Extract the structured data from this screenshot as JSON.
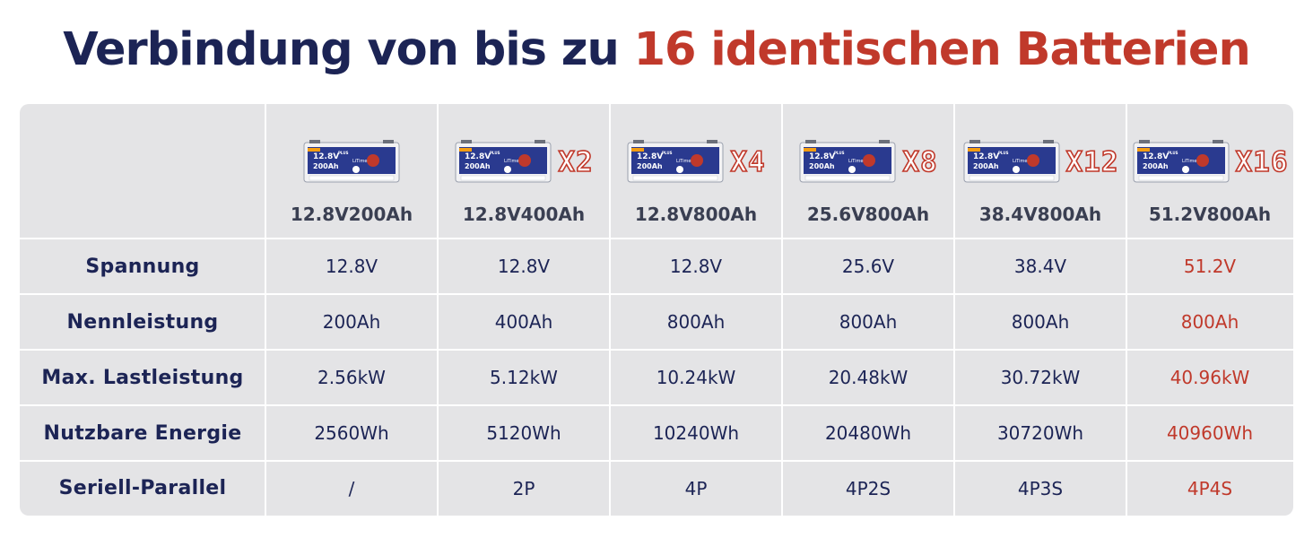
{
  "title": {
    "main": "Verbindung von bis zu",
    "highlight": "16 identischen Batterien"
  },
  "battery_image": {
    "voltage_text": "12.8V",
    "capacity_text": "200Ah",
    "badge_text": "PLUS",
    "brand_text": "LiTime",
    "colors": {
      "body": "#2a3a8f",
      "accent": "#c0392b",
      "casing": "#f2f2f4"
    }
  },
  "columns": [
    {
      "multiplier": "",
      "name": "12.8V200Ah"
    },
    {
      "multiplier": "X2",
      "name": "12.8V400Ah"
    },
    {
      "multiplier": "X4",
      "name": "12.8V800Ah"
    },
    {
      "multiplier": "X8",
      "name": "25.6V800Ah"
    },
    {
      "multiplier": "X12",
      "name": "38.4V800Ah"
    },
    {
      "multiplier": "X16",
      "name": "51.2V800Ah"
    }
  ],
  "rows": [
    {
      "label": "Spannung",
      "values": [
        "12.8V",
        "12.8V",
        "12.8V",
        "25.6V",
        "38.4V",
        "51.2V"
      ]
    },
    {
      "label": "Nennleistung",
      "values": [
        "200Ah",
        "400Ah",
        "800Ah",
        "800Ah",
        "800Ah",
        "800Ah"
      ]
    },
    {
      "label": "Max. Lastleistung",
      "values": [
        "2.56kW",
        "5.12kW",
        "10.24kW",
        "20.48kW",
        "30.72kW",
        "40.96kW"
      ]
    },
    {
      "label": "Nutzbare Energie",
      "values": [
        "2560Wh",
        "5120Wh",
        "10240Wh",
        "20480Wh",
        "30720Wh",
        "40960Wh"
      ]
    },
    {
      "label": "Seriell-Parallel",
      "values": [
        "/",
        "2P",
        "4P",
        "4P2S",
        "4P3S",
        "4P4S"
      ]
    }
  ],
  "colors": {
    "text": "#1c2455",
    "highlight": "#c0392b",
    "table_bg": "#e4e4e6",
    "grid": "#ffffff"
  }
}
